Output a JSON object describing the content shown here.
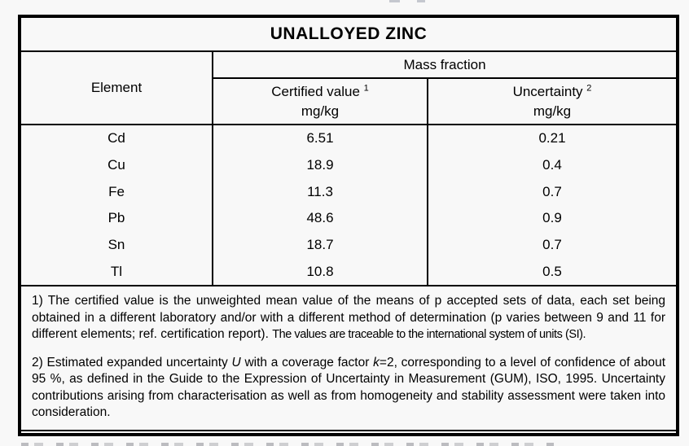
{
  "table": {
    "title": "UNALLOYED ZINC",
    "header": {
      "element_label": "Element",
      "mass_fraction_label": "Mass fraction",
      "certified_value_label": "Certified value",
      "certified_value_footnote_ref": "1",
      "certified_value_unit": "mg/kg",
      "uncertainty_label": "Uncertainty",
      "uncertainty_footnote_ref": "2",
      "uncertainty_unit": "mg/kg"
    },
    "rows": [
      {
        "element": "Cd",
        "certified_value": "6.51",
        "uncertainty": "0.21"
      },
      {
        "element": "Cu",
        "certified_value": "18.9",
        "uncertainty": "0.4"
      },
      {
        "element": "Fe",
        "certified_value": "11.3",
        "uncertainty": "0.7"
      },
      {
        "element": "Pb",
        "certified_value": "48.6",
        "uncertainty": "0.9"
      },
      {
        "element": "Sn",
        "certified_value": "18.7",
        "uncertainty": "0.7"
      },
      {
        "element": "Tl",
        "certified_value": "10.8",
        "uncertainty": "0.5"
      }
    ]
  },
  "footnotes": {
    "note1": {
      "main": "1) The certified value is the unweighted mean value of the means of p accepted sets of data, each set being obtained in a different laboratory and/or with a different method of determination (p varies between 9 and 11 for different elements; ref. certification report). ",
      "traceability": "The values are traceable to the international system of units (SI)."
    },
    "note2": {
      "prefix": "2) Estimated expanded uncertainty ",
      "u_symbol": "U",
      "middle": " with a coverage factor ",
      "k_symbol": "k",
      "suffix": "=2, corresponding to a level of confidence of about 95 %, as defined in the Guide to the Expression of Uncertainty in Measurement (GUM), ISO, 1995. Uncertainty contributions arising from characterisation as well as from homogeneity and stability assessment were taken into consideration."
    }
  },
  "colors": {
    "background": "#f8f8f8",
    "border": "#000000",
    "text": "#000000"
  }
}
